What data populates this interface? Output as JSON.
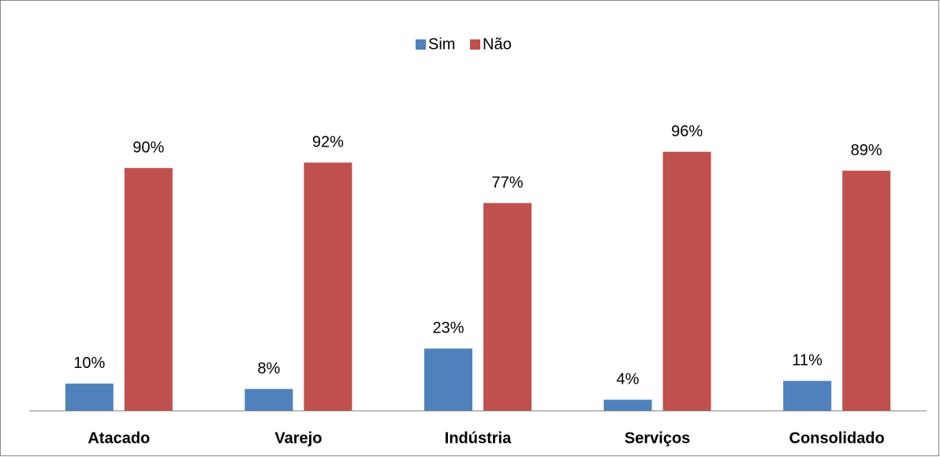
{
  "chart_data": {
    "type": "bar",
    "categories": [
      "Atacado",
      "Varejo",
      "Indústria",
      "Serviços",
      "Consolidado"
    ],
    "series": [
      {
        "name": "Sim",
        "color": "#4f81bd",
        "values": [
          10,
          8,
          23,
          4,
          11
        ],
        "value_labels": [
          "10%",
          "8%",
          "23%",
          "4%",
          "11%"
        ]
      },
      {
        "name": "Não",
        "color": "#c0504d",
        "values": [
          90,
          92,
          77,
          96,
          89
        ],
        "value_labels": [
          "90%",
          "92%",
          "77%",
          "96%",
          "89%"
        ]
      }
    ],
    "ylim": [
      0,
      100
    ],
    "legend": "top"
  }
}
